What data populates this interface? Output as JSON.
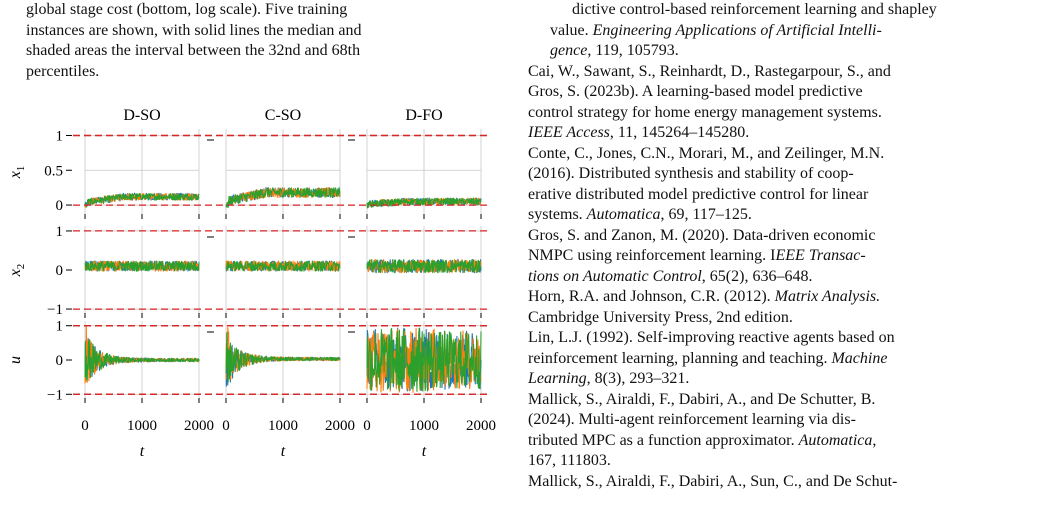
{
  "caption": {
    "lines": [
      "global stage cost (bottom, log scale). Five training",
      "instances are shown, with solid lines the median and",
      "shaded areas the interval between the 32nd and 68th",
      "percentiles."
    ]
  },
  "references": [
    {
      "lines": [
        {
          "text": "dictive control-based reinforcement learning and shapley",
          "italic": false
        },
        {
          "text": "value.  Engineering Applications of Artificial Intelli-",
          "italic": false
        },
        {
          "text": "gence, 119, 105793.",
          "italic": false
        }
      ]
    },
    {
      "lines": [
        {
          "text": "Cai, W., Sawant, S., Reinhardt, D., Rastegarpour, S., and",
          "italic": false
        },
        {
          "text": "Gros, S. (2023b).  A learning-based model predictive",
          "italic": false
        },
        {
          "text": "control strategy for home energy management systems.",
          "italic": false
        },
        {
          "text": "IEEE Access, 11, 145264–145280.",
          "italic": false
        }
      ]
    },
    {
      "lines": [
        {
          "text": "Conte, C., Jones, C.N., Morari, M., and Zeilinger, M.N.",
          "italic": false
        },
        {
          "text": "(2016).   Distributed synthesis and stability of coop-",
          "italic": false
        },
        {
          "text": "erative distributed model predictive control for linear",
          "italic": false
        },
        {
          "text": "systems. Automatica, 69, 117–125.",
          "italic": false
        }
      ]
    },
    {
      "lines": [
        {
          "text": "Gros, S. and Zanon, M. (2020).  Data-driven economic",
          "italic": false
        },
        {
          "text": "NMPC using reinforcement learning.  IEEE Transac-",
          "italic": false
        },
        {
          "text": "tions on Automatic Control, 65(2), 636–648.",
          "italic": false
        }
      ]
    },
    {
      "lines": [
        {
          "text": "Horn, R.A. and Johnson, C.R. (2012).  Matrix Analysis.",
          "italic": false
        },
        {
          "text": "Cambridge University Press, 2nd edition.",
          "italic": false
        }
      ]
    },
    {
      "lines": [
        {
          "text": "Lin, L.J. (1992). Self-improving reactive agents based on",
          "italic": false
        },
        {
          "text": "reinforcement learning, planning and teaching. Machine",
          "italic": false
        },
        {
          "text": "Learning, 8(3), 293–321.",
          "italic": false
        }
      ]
    },
    {
      "lines": [
        {
          "text": "Mallick, S., Airaldi, F., Dabiri, A., and De Schutter, B.",
          "italic": false
        },
        {
          "text": "(2024).    Multi-agent reinforcement learning via dis-",
          "italic": false
        },
        {
          "text": "tributed MPC as a function approximator. Automatica,",
          "italic": false
        },
        {
          "text": "167, 111803.",
          "italic": false
        }
      ]
    },
    {
      "lines": [
        {
          "text": "Mallick, S., Airaldi, F., Dabiri, A., Sun, C., and De Schut-",
          "italic": false
        }
      ]
    }
  ],
  "chart_data": {
    "type": "line",
    "columns": [
      "D-SO",
      "C-SO",
      "D-FO"
    ],
    "rows": [
      {
        "ylabel": "x1",
        "ylabel_main": "x",
        "ylabel_sub": "1",
        "yticks": [
          "1",
          "0.5",
          "0"
        ],
        "bounds": [
          1,
          0
        ],
        "ylim": [
          -0.1,
          1.05
        ]
      },
      {
        "ylabel": "x2",
        "ylabel_main": "x",
        "ylabel_sub": "2",
        "yticks": [
          "1",
          "0",
          "−1"
        ],
        "bounds": [
          1,
          -1
        ],
        "ylim": [
          -1.05,
          1.05
        ]
      },
      {
        "ylabel": "u",
        "ylabel_main": "u",
        "ylabel_sub": "",
        "yticks": [
          "1",
          "0",
          "−1"
        ],
        "bounds": [
          1,
          -1
        ],
        "ylim": [
          -1.05,
          1.05
        ]
      }
    ],
    "xlabel": "t",
    "xticks": [
      "0",
      "1000",
      "2000"
    ],
    "xlim": [
      0,
      2000
    ],
    "series_colors": [
      "#1f77b4",
      "#ff7f0e",
      "#2ca02c"
    ],
    "bound_color": "#d62728",
    "grid": true,
    "approx_levels": {
      "x1": {
        "D-SO": 0.12,
        "C-SO": 0.18,
        "D-FO": 0.05
      },
      "x2": {
        "D-SO": 0.1,
        "C-SO": 0.1,
        "D-FO": 0.1
      },
      "u": {
        "D-SO": 0.0,
        "C-SO": 0.03,
        "D-FO": 0.0
      }
    }
  }
}
